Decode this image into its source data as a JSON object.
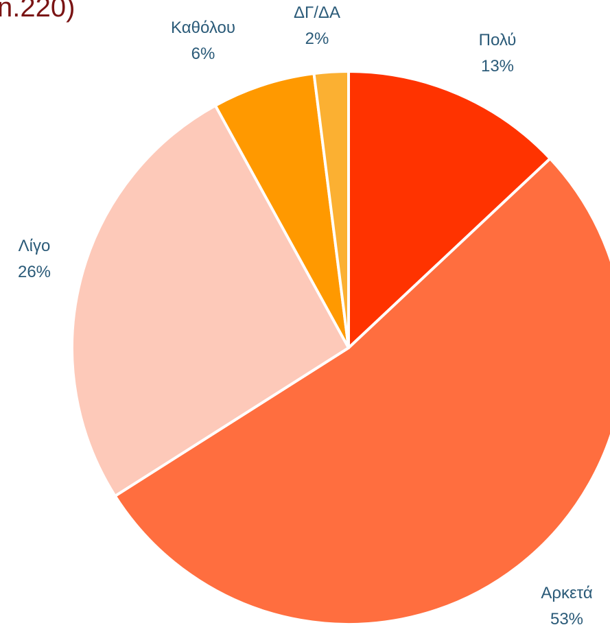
{
  "chart_data": {
    "type": "pie",
    "title": "n.220)",
    "categories": [
      "Πολύ",
      "Αρκετά",
      "Λίγο",
      "Καθόλου",
      "ΔΓ/ΔΑ"
    ],
    "values": [
      13,
      53,
      26,
      6,
      2
    ],
    "value_labels": [
      "13%",
      "53%",
      "26%",
      "6%",
      "2%"
    ],
    "colors": [
      "#ff3300",
      "#ff6e3f",
      "#fdc9b9",
      "#ff9900",
      "#fbb032"
    ]
  }
}
